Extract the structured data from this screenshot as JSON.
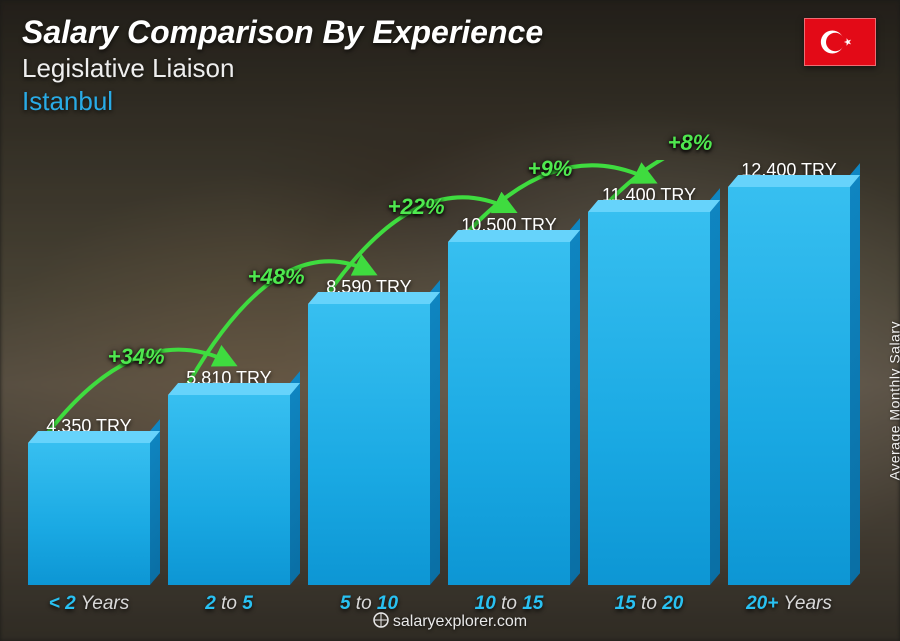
{
  "header": {
    "title": "Salary Comparison By Experience",
    "subtitle": "Legislative Liaison",
    "location": "Istanbul",
    "location_color": "#29abe6"
  },
  "ylabel": "Average Monthly Salary",
  "footer": "salaryexplorer.com",
  "flag": {
    "country": "Turkey",
    "bg": "#E30A17",
    "fg": "#ffffff"
  },
  "chart": {
    "type": "bar",
    "bar_color_front": "#1aa9e3",
    "bar_color_top": "#66d3fb",
    "bar_color_side": "#0a6fa5",
    "xlabel_accent_color": "#29c1f2",
    "max_value": 13000,
    "bars": [
      {
        "label_accent": "< 2",
        "label_dim": " Years",
        "value": 4350,
        "value_label": "4,350 TRY"
      },
      {
        "label_accent": "2",
        "label_dim": " to ",
        "label_accent2": "5",
        "value": 5810,
        "value_label": "5,810 TRY"
      },
      {
        "label_accent": "5",
        "label_dim": " to ",
        "label_accent2": "10",
        "value": 8590,
        "value_label": "8,590 TRY"
      },
      {
        "label_accent": "10",
        "label_dim": " to ",
        "label_accent2": "15",
        "value": 10500,
        "value_label": "10,500 TRY"
      },
      {
        "label_accent": "15",
        "label_dim": " to ",
        "label_accent2": "20",
        "value": 11400,
        "value_label": "11,400 TRY"
      },
      {
        "label_accent": "20+",
        "label_dim": " Years",
        "value": 12400,
        "value_label": "12,400 TRY"
      }
    ],
    "increases": [
      {
        "from": 0,
        "to": 1,
        "pct": "+34%"
      },
      {
        "from": 1,
        "to": 2,
        "pct": "+48%"
      },
      {
        "from": 2,
        "to": 3,
        "pct": "+22%"
      },
      {
        "from": 3,
        "to": 4,
        "pct": "+9%"
      },
      {
        "from": 4,
        "to": 5,
        "pct": "+8%"
      }
    ],
    "arc_color": "#3fdc3f",
    "arc_stroke_width": 4
  },
  "typography": {
    "title_fontsize": 32,
    "subtitle_fontsize": 26,
    "value_fontsize": 18,
    "xlabel_fontsize": 19,
    "pct_fontsize": 22
  }
}
